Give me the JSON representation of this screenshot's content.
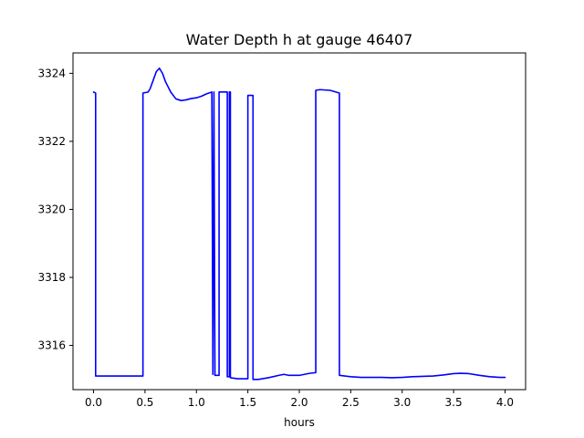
{
  "chart_data": {
    "type": "line",
    "title": "Water Depth h at gauge 46407",
    "xlabel": "hours",
    "ylabel": "",
    "xlim": [
      -0.2,
      4.2
    ],
    "ylim": [
      3314.7,
      3324.6
    ],
    "x_ticks": [
      0.0,
      0.5,
      1.0,
      1.5,
      2.0,
      2.5,
      3.0,
      3.5,
      4.0
    ],
    "x_tick_labels": [
      "0.0",
      "0.5",
      "1.0",
      "1.5",
      "2.0",
      "2.5",
      "3.0",
      "3.5",
      "4.0"
    ],
    "y_ticks": [
      3316,
      3318,
      3320,
      3322,
      3324
    ],
    "y_tick_labels": [
      "3316",
      "3318",
      "3320",
      "3322",
      "3324"
    ],
    "grid": false,
    "legend": "none",
    "series": [
      {
        "color": "#0000ff",
        "x": [
          0.0,
          0.02,
          0.02,
          0.1,
          0.2,
          0.3,
          0.4,
          0.48,
          0.48,
          0.53,
          0.55,
          0.58,
          0.61,
          0.64,
          0.67,
          0.7,
          0.75,
          0.8,
          0.85,
          0.9,
          0.95,
          1.0,
          1.05,
          1.1,
          1.15,
          1.15,
          1.16,
          1.16,
          1.17,
          1.17,
          1.18,
          1.18,
          1.22,
          1.22,
          1.3,
          1.3,
          1.32,
          1.32,
          1.33,
          1.33,
          1.4,
          1.5,
          1.5,
          1.51,
          1.51,
          1.55,
          1.55,
          1.6,
          1.7,
          1.8,
          1.85,
          1.9,
          2.0,
          2.1,
          2.16,
          2.16,
          2.2,
          2.3,
          2.39,
          2.39,
          2.5,
          2.6,
          2.7,
          2.8,
          2.9,
          3.0,
          3.1,
          3.2,
          3.3,
          3.4,
          3.5,
          3.57,
          3.65,
          3.75,
          3.85,
          3.95,
          4.0
        ],
        "y": [
          3323.45,
          3323.42,
          3315.1,
          3315.1,
          3315.1,
          3315.1,
          3315.1,
          3315.1,
          3323.42,
          3323.45,
          3323.55,
          3323.8,
          3324.05,
          3324.15,
          3324.0,
          3323.75,
          3323.45,
          3323.25,
          3323.2,
          3323.22,
          3323.26,
          3323.28,
          3323.33,
          3323.4,
          3323.45,
          3323.45,
          3315.15,
          3315.15,
          3323.45,
          3323.45,
          3315.12,
          3315.12,
          3315.12,
          3323.45,
          3323.45,
          3315.08,
          3315.08,
          3323.45,
          3323.45,
          3315.05,
          3315.02,
          3315.02,
          3323.35,
          3323.35,
          3323.35,
          3323.35,
          3315.0,
          3315.0,
          3315.05,
          3315.12,
          3315.15,
          3315.12,
          3315.12,
          3315.18,
          3315.2,
          3323.5,
          3323.52,
          3323.5,
          3323.42,
          3315.12,
          3315.08,
          3315.06,
          3315.06,
          3315.06,
          3315.05,
          3315.06,
          3315.08,
          3315.09,
          3315.1,
          3315.13,
          3315.17,
          3315.18,
          3315.17,
          3315.12,
          3315.08,
          3315.06,
          3315.06
        ]
      }
    ]
  }
}
